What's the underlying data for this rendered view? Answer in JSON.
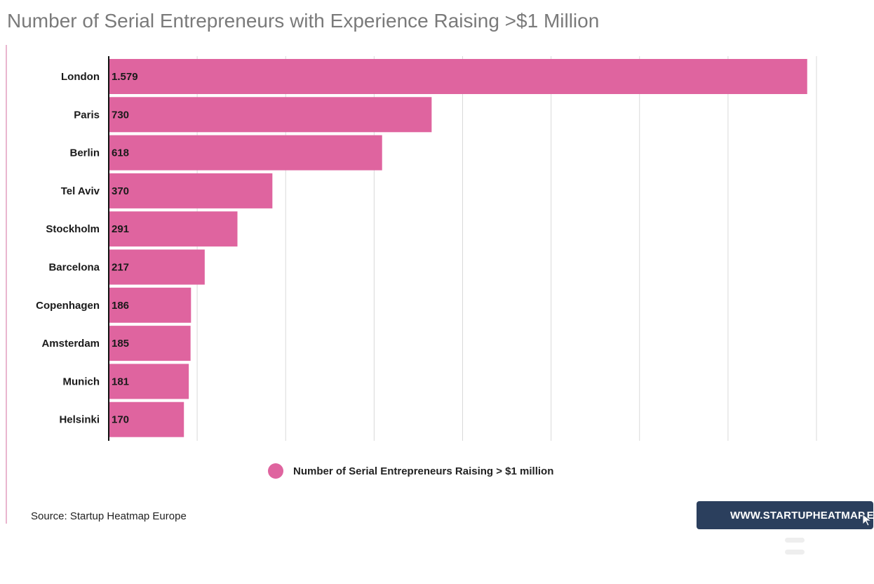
{
  "title": "Number of Serial Entrepreneurs with Experience Raising >$1 Million",
  "colors": {
    "bar": "#df649f",
    "grid": "#d9d9d9",
    "axis": "#111111",
    "badge": "#2b3f5d"
  },
  "chart_data": {
    "type": "bar",
    "orientation": "horizontal",
    "title": "Number of Serial Entrepreneurs with Experience Raising >$1 Million",
    "categories": [
      "London",
      "Paris",
      "Berlin",
      "Tel Aviv",
      "Stockholm",
      "Barcelona",
      "Copenhagen",
      "Amsterdam",
      "Munich",
      "Helsinki"
    ],
    "value_labels": [
      "1.579",
      "730",
      "618",
      "370",
      "291",
      "217",
      "186",
      "185",
      "181",
      "170"
    ],
    "series": [
      {
        "name": "Number of Serial Entrepreneurs Raising > $1 million",
        "values": [
          1579,
          730,
          618,
          370,
          291,
          217,
          186,
          185,
          181,
          170
        ]
      }
    ],
    "xlim": [
      0,
      1600
    ],
    "grid": true,
    "legend_position": "bottom"
  },
  "legend": {
    "label": "Number of Serial Entrepreneurs Raising > $1 million"
  },
  "footer": {
    "source": "Source: Startup Heatmap Europe",
    "url_badge": "WWW.STARTUPHEATMAP.EU"
  },
  "icons": {
    "legend_marker": "circle",
    "cursor": "cursor-icon",
    "menu": "menu-icon"
  }
}
